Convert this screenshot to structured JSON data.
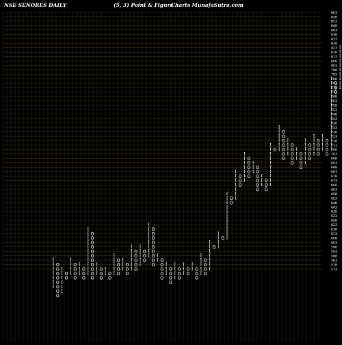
{
  "header": {
    "symbol_title": "NSE SENORES DAILY",
    "box_reversal": "(5,  3) Point & Figure",
    "site": "Charts MunafaSutra.com"
  },
  "chart_data": {
    "type": "point-and-figure",
    "title": "NSE SENORES DAILY",
    "subtitle": "(5,  3) Point & Figure",
    "box_size": 5,
    "reversal": 3,
    "ylim": [
      573,
      863
    ],
    "y_ticks": [
      863,
      858,
      853,
      848,
      843,
      838,
      833,
      828,
      823,
      818,
      813,
      808,
      803,
      798,
      793,
      788,
      783,
      778,
      773,
      768,
      763,
      758,
      753,
      748,
      743,
      738,
      733,
      728,
      723,
      718,
      713,
      708,
      703,
      698,
      693,
      688,
      683,
      678,
      673,
      668,
      663,
      658,
      653,
      648,
      643,
      638,
      633,
      628,
      623,
      618,
      613,
      608,
      603,
      598,
      593,
      588,
      583,
      578,
      573
    ],
    "last_price": 776.75,
    "last_price_label": "776.75",
    "colors": {
      "x_mark": "#ffffff",
      "o_mark": "#ffffff",
      "last_price_box": "#1e6bff",
      "grid": "#3a2a10",
      "lower_band": "#2a2a2a"
    },
    "columns": [
      {
        "type": "X",
        "low": 553,
        "high": 583
      },
      {
        "type": "O",
        "low": 543,
        "high": 578
      },
      {
        "type": "X",
        "low": 548,
        "high": 573
      },
      {
        "type": "O",
        "low": 563,
        "high": 568
      },
      {
        "type": "X",
        "low": 568,
        "high": 583
      },
      {
        "type": "O",
        "low": 563,
        "high": 578
      },
      {
        "type": "X",
        "low": 568,
        "high": 578
      },
      {
        "type": "O",
        "low": 563,
        "high": 573
      },
      {
        "type": "X",
        "low": 568,
        "high": 618
      },
      {
        "type": "O",
        "low": 563,
        "high": 613
      },
      {
        "type": "X",
        "low": 568,
        "high": 578
      },
      {
        "type": "O",
        "low": 563,
        "high": 573
      },
      {
        "type": "X",
        "low": 568,
        "high": 573
      },
      {
        "type": "O",
        "low": 563,
        "high": 568
      },
      {
        "type": "X",
        "low": 568,
        "high": 588
      },
      {
        "type": "O",
        "low": 568,
        "high": 583
      },
      {
        "type": "X",
        "low": 573,
        "high": 583
      },
      {
        "type": "O",
        "low": 568,
        "high": 578
      },
      {
        "type": "X",
        "low": 573,
        "high": 598
      },
      {
        "type": "O",
        "low": 573,
        "high": 593
      },
      {
        "type": "X",
        "low": 578,
        "high": 598
      },
      {
        "type": "O",
        "low": 583,
        "high": 593
      },
      {
        "type": "X",
        "low": 588,
        "high": 623
      },
      {
        "type": "O",
        "low": 578,
        "high": 618
      },
      {
        "type": "X",
        "low": 583,
        "high": 588
      },
      {
        "type": "O",
        "low": 563,
        "high": 583
      },
      {
        "type": "X",
        "low": 568,
        "high": 578
      },
      {
        "type": "O",
        "low": 558,
        "high": 573
      },
      {
        "type": "X",
        "low": 563,
        "high": 578
      },
      {
        "type": "O",
        "low": 563,
        "high": 573
      },
      {
        "type": "X",
        "low": 568,
        "high": 578
      },
      {
        "type": "O",
        "low": 568,
        "high": 573
      },
      {
        "type": "X",
        "low": 573,
        "high": 578
      },
      {
        "type": "O",
        "low": 563,
        "high": 573
      },
      {
        "type": "X",
        "low": 568,
        "high": 588
      },
      {
        "type": "O",
        "low": 568,
        "high": 583
      },
      {
        "type": "X",
        "low": 573,
        "high": 603
      },
      {
        "type": "O",
        "low": 598,
        "high": 598
      },
      {
        "type": "X",
        "low": 598,
        "high": 613
      },
      {
        "type": "O",
        "low": 608,
        "high": 608
      },
      {
        "type": "X",
        "low": 608,
        "high": 658
      },
      {
        "type": "O",
        "low": 648,
        "high": 653
      },
      {
        "type": "X",
        "low": 653,
        "high": 683
      },
      {
        "type": "O",
        "low": 668,
        "high": 678
      },
      {
        "type": "X",
        "low": 673,
        "high": 703
      },
      {
        "type": "O",
        "low": 678,
        "high": 698
      },
      {
        "type": "X",
        "low": 683,
        "high": 693
      },
      {
        "type": "O",
        "low": 663,
        "high": 688
      },
      {
        "type": "X",
        "low": 668,
        "high": 678
      },
      {
        "type": "O",
        "low": 663,
        "high": 673
      },
      {
        "type": "X",
        "low": 668,
        "high": 713
      },
      {
        "type": "O",
        "low": 708,
        "high": 708
      },
      {
        "type": "X",
        "low": 708,
        "high": 733
      },
      {
        "type": "O",
        "low": 698,
        "high": 728
      },
      {
        "type": "X",
        "low": 703,
        "high": 718
      },
      {
        "type": "O",
        "low": 693,
        "high": 713
      },
      {
        "type": "X",
        "low": 698,
        "high": 708
      },
      {
        "type": "O",
        "low": 688,
        "high": 703
      },
      {
        "type": "X",
        "low": 693,
        "high": 718
      },
      {
        "type": "O",
        "low": 698,
        "high": 713
      },
      {
        "type": "X",
        "low": 703,
        "high": 723
      },
      {
        "type": "O",
        "low": 703,
        "high": 718
      },
      {
        "type": "X",
        "low": 708,
        "high": 723
      },
      {
        "type": "O",
        "low": 703,
        "high": 718
      },
      {
        "type": "X",
        "low": 708,
        "high": 788
      },
      {
        "type": "O",
        "low": 773,
        "high": 783
      },
      {
        "type": "X",
        "low": 778,
        "high": 823
      },
      {
        "type": "O",
        "low": 773,
        "high": 818
      },
      {
        "type": "X",
        "low": 778,
        "high": 818
      },
      {
        "type": "O",
        "low": 773,
        "high": 813
      },
      {
        "type": "X",
        "low": 778,
        "high": 818
      },
      {
        "type": "O",
        "low": 773,
        "high": 813
      },
      {
        "type": "X",
        "low": 778,
        "high": 813
      },
      {
        "type": "O",
        "low": 773,
        "high": 808
      }
    ]
  }
}
